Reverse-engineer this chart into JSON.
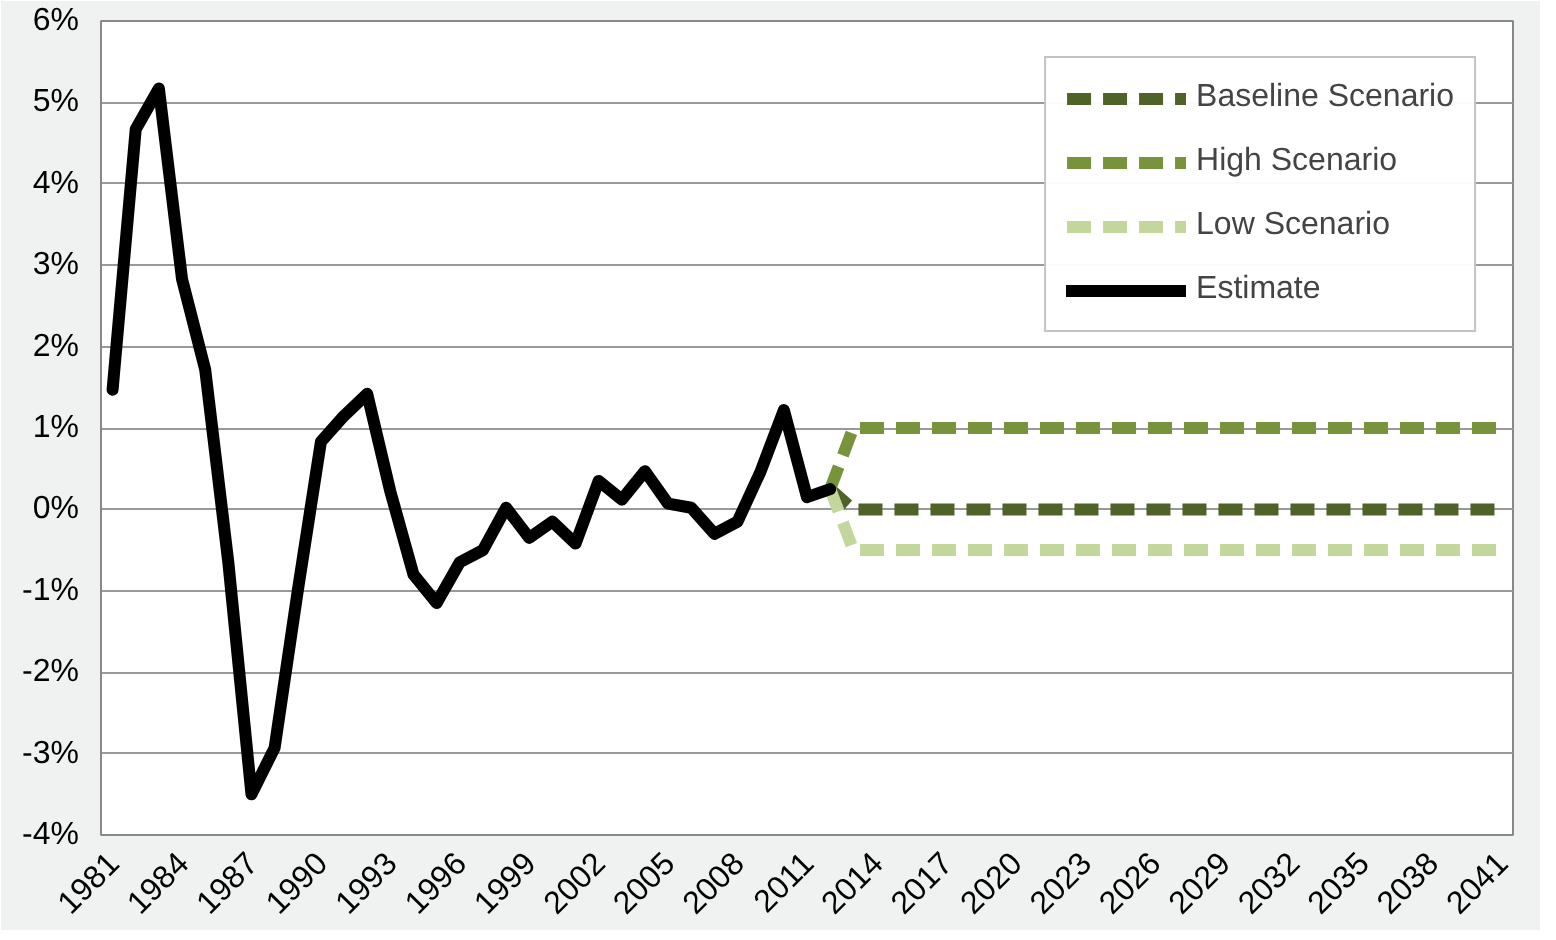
{
  "chart_data": {
    "type": "line",
    "xlim": [
      1980.5,
      2041.5
    ],
    "xticks": [
      1981,
      1984,
      1987,
      1990,
      1993,
      1996,
      1999,
      2002,
      2005,
      2008,
      2011,
      2014,
      2017,
      2020,
      2023,
      2026,
      2029,
      2032,
      2035,
      2038,
      2041
    ],
    "ylim": [
      -4,
      6
    ],
    "yticks": [
      {
        "value": -4,
        "label": "-4%"
      },
      {
        "value": -3,
        "label": "-3%"
      },
      {
        "value": -2,
        "label": "-2%"
      },
      {
        "value": -1,
        "label": "-1%"
      },
      {
        "value": 0,
        "label": "0%"
      },
      {
        "value": 1,
        "label": "1%"
      },
      {
        "value": 2,
        "label": "2%"
      },
      {
        "value": 3,
        "label": "3%"
      },
      {
        "value": 4,
        "label": "4%"
      },
      {
        "value": 5,
        "label": "5%"
      },
      {
        "value": 6,
        "label": "6%"
      }
    ],
    "grid": "y",
    "legend": "top right",
    "marker": "none",
    "series": [
      {
        "name": "Baseline Scenario",
        "color": "#4f6228",
        "line_style": "dashed",
        "x": [
          2012,
          2013,
          2041
        ],
        "values": [
          0.25,
          0,
          0
        ]
      },
      {
        "name": "High Scenario",
        "color": "#77933c",
        "line_style": "dashed",
        "x": [
          2012,
          2013,
          2041
        ],
        "values": [
          0.25,
          1,
          1
        ]
      },
      {
        "name": "Low Scenario",
        "color": "#c3d69b",
        "line_style": "dashed",
        "x": [
          2012,
          2013,
          2041
        ],
        "values": [
          0.25,
          -0.5,
          -0.5
        ]
      },
      {
        "name": "Estimate",
        "color": "#000000",
        "line_style": "solid",
        "x": [
          1981,
          1982,
          1983,
          1984,
          1985,
          1986,
          1987,
          1988,
          1989,
          1990,
          1991,
          1992,
          1993,
          1994,
          1995,
          1996,
          1997,
          1998,
          1999,
          2000,
          2001,
          2002,
          2003,
          2004,
          2005,
          2006,
          2007,
          2008,
          2009,
          2010,
          2011,
          2012
        ],
        "values": [
          1.47,
          4.67,
          5.17,
          2.83,
          1.72,
          -0.65,
          -3.5,
          -2.93,
          -1.0,
          0.83,
          1.15,
          1.42,
          0.22,
          -0.8,
          -1.15,
          -0.65,
          -0.5,
          0.02,
          -0.35,
          -0.15,
          -0.42,
          0.35,
          0.12,
          0.47,
          0.07,
          0.02,
          -0.3,
          -0.15,
          0.47,
          1.22,
          0.15,
          0.25
        ]
      }
    ]
  }
}
